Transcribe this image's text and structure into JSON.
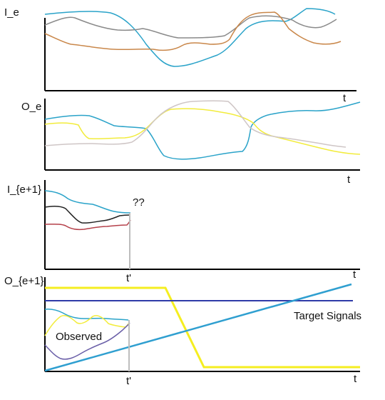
{
  "panels": {
    "p1": {
      "ylabel": "I_e",
      "xlabel": "t"
    },
    "p2": {
      "ylabel": "O_e",
      "xlabel": "t"
    },
    "p3": {
      "ylabel": "I_{e+1}",
      "xlabel": "t",
      "unknown": "??",
      "cut_label": "t'"
    },
    "p4": {
      "ylabel": "O_{e+1}",
      "xlabel": "t",
      "cut_label": "t'",
      "observed_label": "Observed",
      "target_label": "Target Signals"
    }
  },
  "colors": {
    "axis": "#000000",
    "blue": "#2aa3c9",
    "gray": "#8a8a8a",
    "orange": "#c9874a",
    "yellow": "#f2ec3c",
    "light_gray": "#cfc6c6",
    "black": "#222222",
    "red": "#b5404a",
    "navy": "#3f3fb0",
    "purple": "#6a5fa8",
    "target_yellow": "#f5ee20",
    "target_navy": "#2f3aa8",
    "target_blue": "#2f9fd0"
  }
}
